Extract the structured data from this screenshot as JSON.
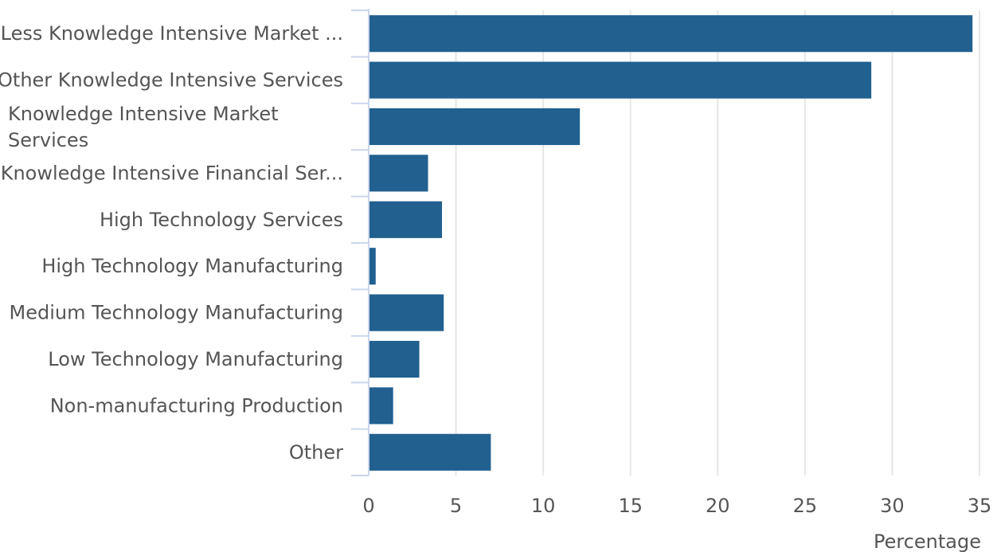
{
  "chart_data": {
    "type": "bar",
    "orientation": "horizontal",
    "categories": [
      "Less Knowledge Intensive Market ...",
      "Other Knowledge Intensive Services",
      "Knowledge Intensive Market Services",
      "Knowledge Intensive Financial Ser...",
      "High Technology Services",
      "High Technology Manufacturing",
      "Medium Technology Manufacturing",
      "Low Technology Manufacturing",
      "Non-manufacturing Production",
      "Other"
    ],
    "category_lines": [
      [
        "Less Knowledge Intensive Market ..."
      ],
      [
        "Other Knowledge Intensive Services"
      ],
      [
        "Knowledge Intensive Market",
        "Services"
      ],
      [
        "Knowledge Intensive Financial Ser..."
      ],
      [
        "High Technology Services"
      ],
      [
        "High Technology Manufacturing"
      ],
      [
        "Medium Technology Manufacturing"
      ],
      [
        "Low Technology Manufacturing"
      ],
      [
        "Non-manufacturing Production"
      ],
      [
        "Other"
      ]
    ],
    "values": [
      34.6,
      28.8,
      12.1,
      3.4,
      4.2,
      0.4,
      4.3,
      2.9,
      1.4,
      7.0
    ],
    "title": "",
    "xlabel": "Percentage",
    "ylabel": "",
    "xlim": [
      0,
      35
    ],
    "xticks": [
      "0",
      "5",
      "10",
      "15",
      "20",
      "25",
      "30",
      "35"
    ],
    "grid": true,
    "legend": "none",
    "bar_color": "#21608f",
    "grid_color": "#e6e6e6",
    "axis_color": "#ccd6eb"
  }
}
